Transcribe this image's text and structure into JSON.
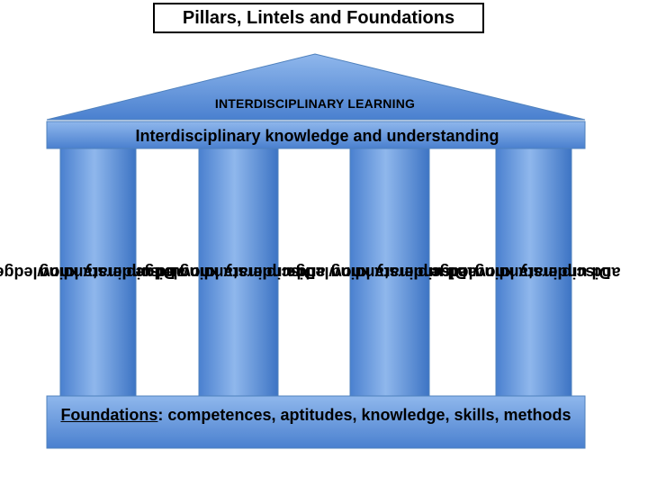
{
  "title": "Pillars, Lintels and Foundations",
  "roof": {
    "label": "INTERDISCIPLINARY LEARNING"
  },
  "lintel": {
    "label": "Interdisciplinary knowledge and understanding"
  },
  "pillars": [
    {
      "line1": "Disciplinary knowledge",
      "line2": "and understanding"
    },
    {
      "line1": "Disciplinary knowledge",
      "line2": "and understanding"
    },
    {
      "line1": "Disciplinary knowledge",
      "line2": "and understanding"
    },
    {
      "line1": "Disciplinary knowledge",
      "line2": "and understanding"
    }
  ],
  "foundation": {
    "underlined": "Foundations",
    "rest": ": competences, aptitudes, knowledge, skills, methods"
  },
  "colors": {
    "fill_light": "#8fb7ec",
    "fill_dark": "#3d74c4",
    "border": "#4f81bd",
    "text": "#000000"
  }
}
